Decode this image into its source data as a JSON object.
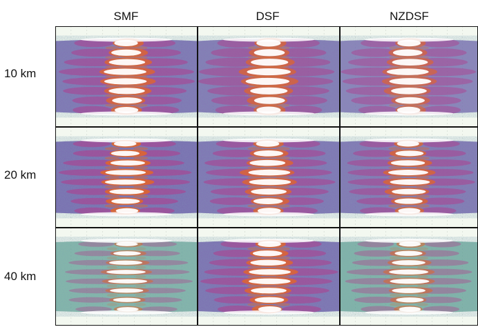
{
  "columns": [
    "SMF",
    "DSF",
    "NZDSF"
  ],
  "rows": [
    "10 km",
    "20 km",
    "40 km"
  ],
  "palette": {
    "background": "#f3f8f0",
    "low": "#4f9a86",
    "mid": "#6a55a8",
    "midHigh": "#b3388a",
    "high": "#e0662c",
    "peak": "#ffffff",
    "grid": "#9aa69a"
  },
  "panels": [
    [
      {
        "fiber": "SMF",
        "distance_km": 10,
        "intensity": 0.8,
        "eye_openness": 0.85
      },
      {
        "fiber": "DSF",
        "distance_km": 10,
        "intensity": 0.7,
        "eye_openness": 0.95
      },
      {
        "fiber": "NZDSF",
        "distance_km": 10,
        "intensity": 0.55,
        "eye_openness": 0.9
      }
    ],
    [
      {
        "fiber": "SMF",
        "distance_km": 20,
        "intensity": 0.95,
        "eye_openness": 0.7
      },
      {
        "fiber": "DSF",
        "distance_km": 20,
        "intensity": 0.8,
        "eye_openness": 0.8
      },
      {
        "fiber": "NZDSF",
        "distance_km": 20,
        "intensity": 0.75,
        "eye_openness": 0.75
      }
    ],
    [
      {
        "fiber": "SMF",
        "distance_km": 40,
        "intensity": 0.35,
        "eye_openness": 0.6
      },
      {
        "fiber": "DSF",
        "distance_km": 40,
        "intensity": 0.85,
        "eye_openness": 0.8
      },
      {
        "fiber": "NZDSF",
        "distance_km": 40,
        "intensity": 0.4,
        "eye_openness": 0.7
      }
    ]
  ]
}
